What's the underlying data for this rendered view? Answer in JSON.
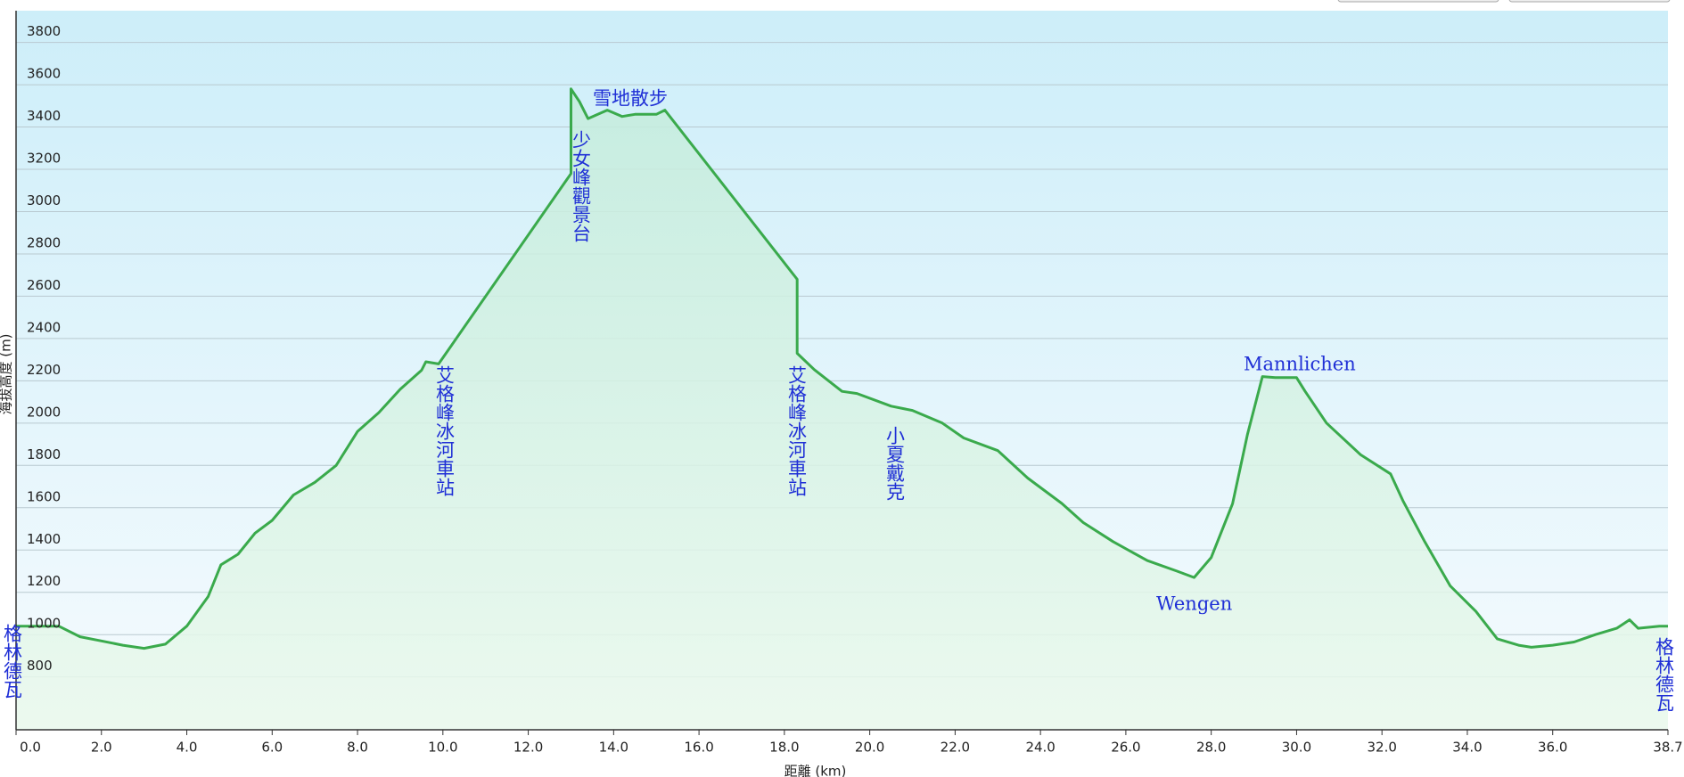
{
  "chart_data": {
    "type": "area",
    "x_label": "距離 (km)",
    "y_label": "海拔高度 (m)",
    "color": "#3aaa4c",
    "grid": true,
    "xlim": [
      0,
      38.7
    ],
    "ylim": [
      550,
      3950
    ],
    "xticks": [
      {
        "value": 0,
        "label": "0.0"
      },
      {
        "value": 2,
        "label": "2.0"
      },
      {
        "value": 4,
        "label": "4.0"
      },
      {
        "value": 6,
        "label": "6.0"
      },
      {
        "value": 8,
        "label": "8.0"
      },
      {
        "value": 10,
        "label": "10.0"
      },
      {
        "value": 12,
        "label": "12.0"
      },
      {
        "value": 14,
        "label": "14.0"
      },
      {
        "value": 16,
        "label": "16.0"
      },
      {
        "value": 18,
        "label": "18.0"
      },
      {
        "value": 20,
        "label": "20.0"
      },
      {
        "value": 22,
        "label": "22.0"
      },
      {
        "value": 24,
        "label": "24.0"
      },
      {
        "value": 26,
        "label": "26.0"
      },
      {
        "value": 28,
        "label": "28.0"
      },
      {
        "value": 30,
        "label": "30.0"
      },
      {
        "value": 32,
        "label": "32.0"
      },
      {
        "value": 34,
        "label": "34.0"
      },
      {
        "value": 36,
        "label": "36.0"
      },
      38.7
    ],
    "yticks": [
      800,
      1000,
      1200,
      1400,
      1600,
      1800,
      2000,
      2200,
      2400,
      2600,
      2800,
      3000,
      3200,
      3400,
      3600,
      3800
    ],
    "x": [
      0,
      1.0,
      1.5,
      2.0,
      2.5,
      3.0,
      3.5,
      4.0,
      4.5,
      4.8,
      5.2,
      5.6,
      6.0,
      6.5,
      7.0,
      7.5,
      8.0,
      8.5,
      9.0,
      9.5,
      9.6,
      9.9,
      13.0,
      13.0,
      13.2,
      13.4,
      13.85,
      14.2,
      14.5,
      15.0,
      15.2,
      18.3,
      18.3,
      18.7,
      19.35,
      19.7,
      20.5,
      21.0,
      21.7,
      22.2,
      23.0,
      23.7,
      24.5,
      25.0,
      25.7,
      26.5,
      27.2,
      27.6,
      28.0,
      28.5,
      28.85,
      29.2,
      29.5,
      30.0,
      30.2,
      30.7,
      31.5,
      32.2,
      32.5,
      33.0,
      33.6,
      34.2,
      34.7,
      35.2,
      35.5,
      36.0,
      36.5,
      37.0,
      37.5,
      37.8,
      38.0,
      38.5,
      38.7
    ],
    "values": [
      1040,
      1040,
      990,
      970,
      950,
      935,
      955,
      1040,
      1180,
      1330,
      1380,
      1480,
      1540,
      1660,
      1720,
      1800,
      1960,
      2050,
      2160,
      2250,
      2290,
      2280,
      3180,
      3580,
      3520,
      3440,
      3480,
      3450,
      3460,
      3460,
      3480,
      2680,
      2330,
      2253,
      2150,
      2140,
      2080,
      2060,
      2000,
      1930,
      1870,
      1740,
      1620,
      1530,
      1440,
      1350,
      1300,
      1270,
      1365,
      1619,
      1948,
      2220,
      2215,
      2215,
      2150,
      2000,
      1850,
      1760,
      1630,
      1440,
      1230,
      1110,
      980,
      950,
      940,
      950,
      965,
      1000,
      1030,
      1070,
      1030,
      1040,
      1040
    ],
    "annotations": [
      "格林德瓦",
      "艾格峰冰河車站",
      "少女峰觀景台",
      "雪地散步",
      "艾格峰冰河車站",
      "小夏戴克",
      "Wengen",
      "Mannlichen",
      "格林德瓦"
    ]
  }
}
